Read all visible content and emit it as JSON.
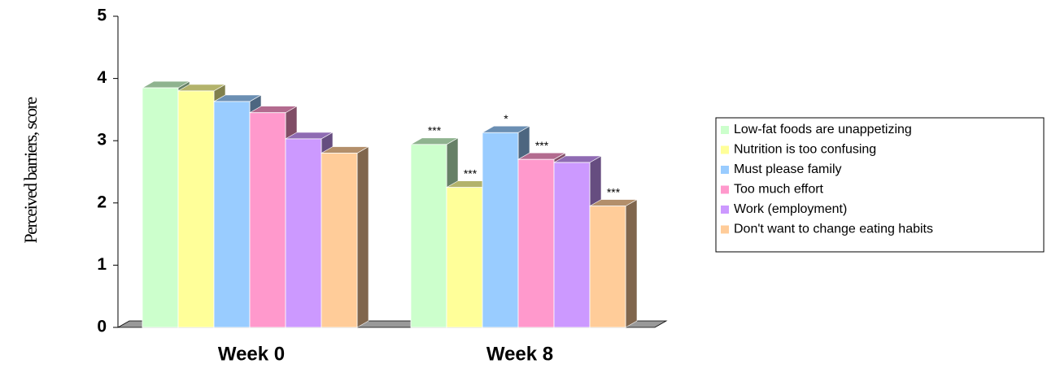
{
  "chart_data": {
    "type": "bar3d",
    "y_label": "Perceived barriers, score",
    "categories": [
      "Week 0",
      "Week 8"
    ],
    "series": [
      {
        "name": "Low-fat foods are unappetizing",
        "color": "#ccffcc",
        "values": [
          3.85,
          2.94
        ]
      },
      {
        "name": "Nutrition is too confusing",
        "color": "#ffff99",
        "values": [
          3.8,
          2.25
        ]
      },
      {
        "name": "Must please family",
        "color": "#99ccff",
        "values": [
          3.63,
          3.13
        ]
      },
      {
        "name": "Too much effort",
        "color": "#ff99cc",
        "values": [
          3.45,
          2.7
        ]
      },
      {
        "name": "Work (employment)",
        "color": "#cc99ff",
        "values": [
          3.03,
          2.65
        ]
      },
      {
        "name": "Don't want to change eating habits",
        "color": "#ffcc99",
        "values": [
          2.8,
          1.95
        ]
      }
    ],
    "annotations": [
      {
        "series": 0,
        "category": 1,
        "text": "***"
      },
      {
        "series": 1,
        "category": 1,
        "text": "***"
      },
      {
        "series": 2,
        "category": 1,
        "text": "*"
      },
      {
        "series": 3,
        "category": 1,
        "text": "***"
      },
      {
        "series": 5,
        "category": 1,
        "text": "***"
      }
    ],
    "ylim": [
      0,
      5
    ],
    "yticks": [
      0,
      1,
      2,
      3,
      4,
      5
    ],
    "grid": false,
    "legend": "right"
  }
}
